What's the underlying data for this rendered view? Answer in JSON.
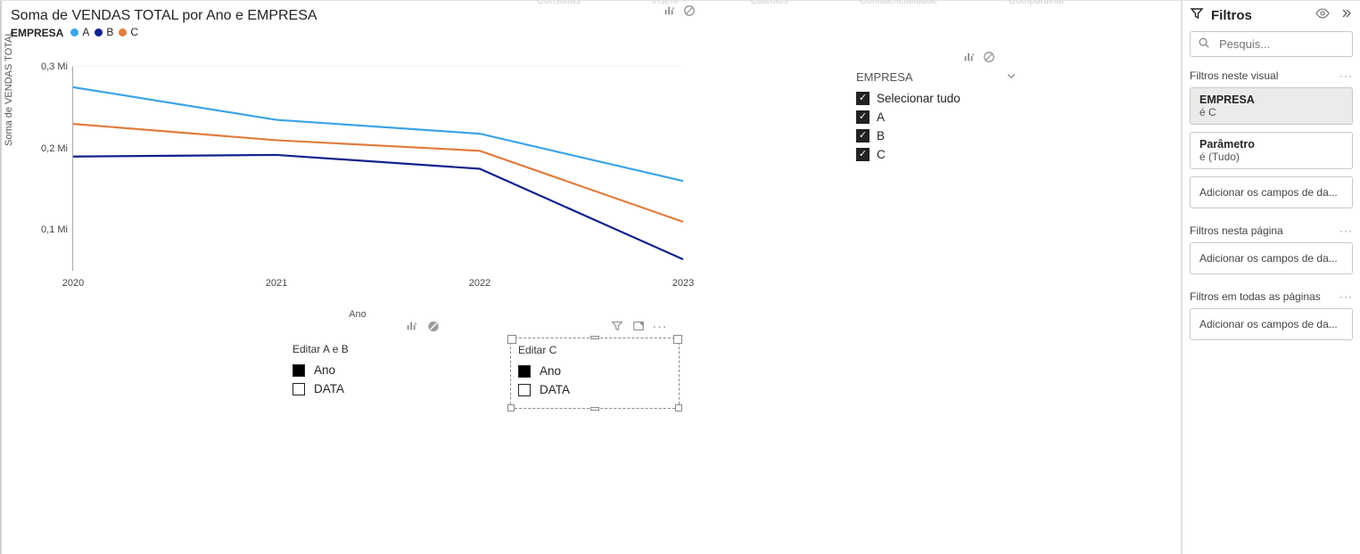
{
  "ribbon_ghost": [
    "Consultas",
    "Inserir",
    "Cálculos",
    "Confidencialidade",
    "Compartilhar"
  ],
  "chart": {
    "title": "Soma de VENDAS TOTAL por Ano e EMPRESA",
    "legend_title": "EMPRESA",
    "series": [
      {
        "key": "A",
        "label": "A",
        "color": "#3ba3e8",
        "values": [
          0.275,
          0.235,
          0.218,
          0.16
        ]
      },
      {
        "key": "B",
        "label": "B",
        "color": "#11228c",
        "values": [
          0.19,
          0.192,
          0.175,
          0.064
        ]
      },
      {
        "key": "C",
        "label": "C",
        "color": "#e07c3e",
        "values": [
          0.23,
          0.21,
          0.197,
          0.11
        ]
      }
    ],
    "x_field": "Ano",
    "x_values": [
      "2020",
      "2021",
      "2022",
      "2023"
    ],
    "y_field": "Soma de VENDAS TOTAL",
    "y_ticks": [
      {
        "value": 0.1,
        "label": "0,1 Mi"
      },
      {
        "value": 0.2,
        "label": "0,2 Mi"
      },
      {
        "value": 0.3,
        "label": "0,3 Mi"
      }
    ],
    "y_min": 0.05,
    "y_max": 0.3,
    "line_width": 2.2,
    "background": "#ffffff"
  },
  "slicer": {
    "title": "EMPRESA",
    "select_all_label": "Selecionar tudo",
    "items": [
      {
        "label": "A",
        "checked": true
      },
      {
        "label": "B",
        "checked": true
      },
      {
        "label": "C",
        "checked": true
      }
    ]
  },
  "param_ab": {
    "title": "Editar A e B",
    "items": [
      {
        "label": "Ano",
        "checked": true
      },
      {
        "label": "DATA",
        "checked": false
      }
    ]
  },
  "param_c": {
    "title": "Editar C",
    "selected": true,
    "items": [
      {
        "label": "Ano",
        "checked": true
      },
      {
        "label": "DATA",
        "checked": false
      }
    ]
  },
  "filters": {
    "pane_title": "Filtros",
    "search_placeholder": "Pesquis...",
    "section_visual": "Filtros neste visual",
    "section_page": "Filtros nesta página",
    "section_all": "Filtros em todas as páginas",
    "drop_text": "Adicionar os campos de da...",
    "cards": [
      {
        "title": "EMPRESA",
        "sub": "é C",
        "active": true
      },
      {
        "title": "Parâmetro",
        "sub": "é (Tudo)",
        "active": false
      }
    ]
  }
}
